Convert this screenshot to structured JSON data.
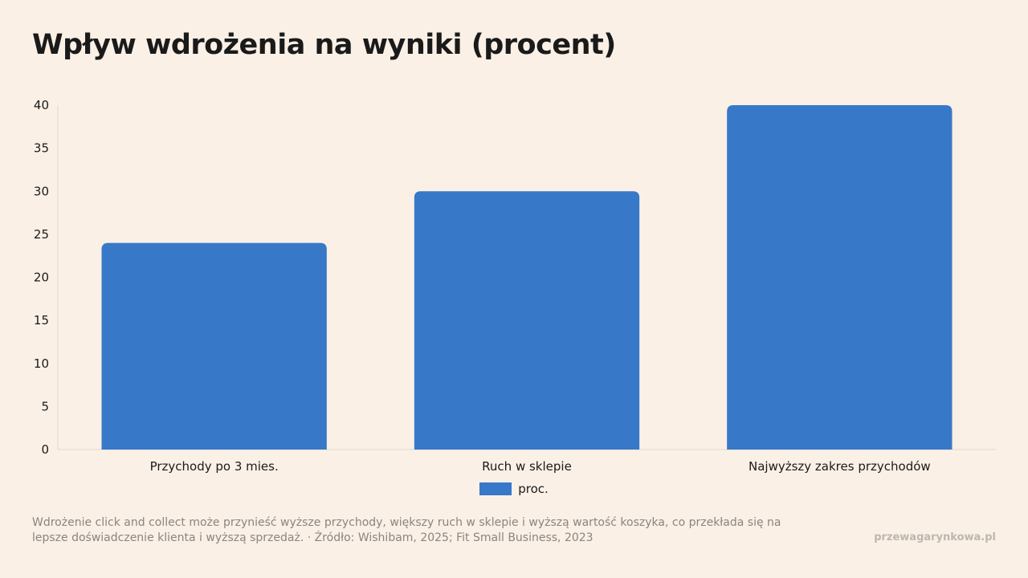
{
  "title": "Wpływ wdrożenia na wyniki (procent)",
  "chart_data": {
    "type": "bar",
    "categories": [
      "Przychody po 3 mies.",
      "Ruch w sklepie",
      "Najwyższy zakres przychodów"
    ],
    "series": [
      {
        "name": "proc.",
        "values": [
          24,
          30,
          40
        ],
        "color": "#3878c8"
      }
    ],
    "ylim": [
      0,
      40
    ],
    "yticks": [
      0,
      5,
      10,
      15,
      20,
      25,
      30,
      35,
      40
    ],
    "xlabel": "",
    "ylabel": "",
    "grid": false,
    "legend_position": "bottom"
  },
  "caption": "Wdrożenie click and collect może przynieść wyższe przychody, większy ruch w sklepie i wyższą wartość koszyka, co przekłada się na lepsze doświadczenie klienta i wyższą sprzedaż. · Źródło: Wishibam, 2025; Fit Small Business, 2023",
  "site": "przewagarynkowa.pl",
  "colors": {
    "background": "#faf0e6",
    "axis": "#e0d8cf",
    "bar": "#3878c8"
  }
}
